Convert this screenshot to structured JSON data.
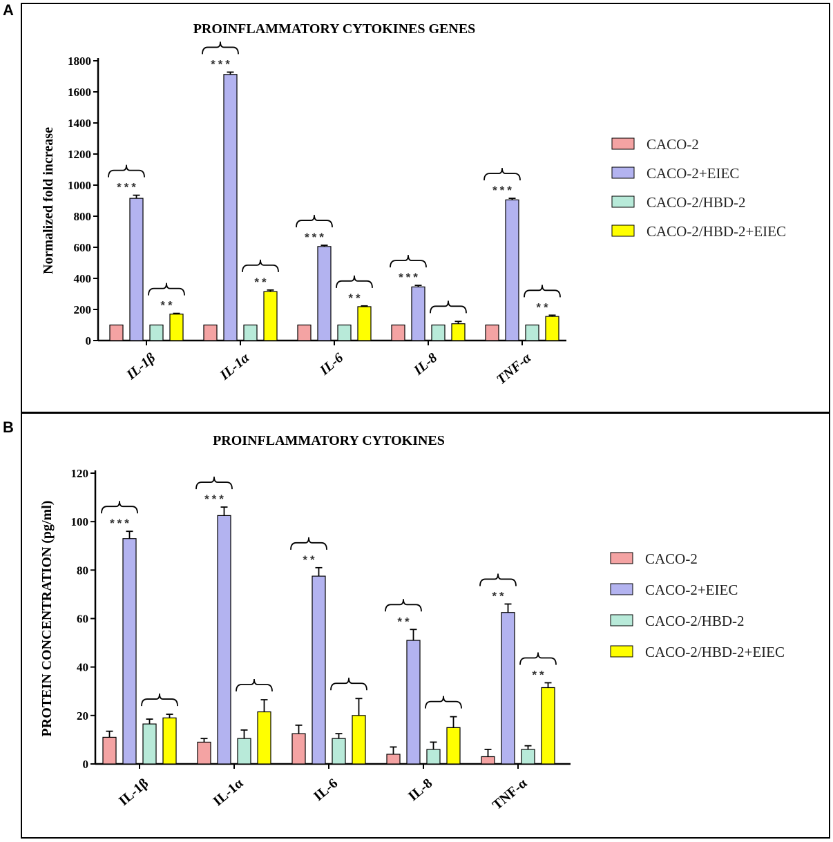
{
  "colors": {
    "CACO-2": "#f4a3a3",
    "CACO-2+EIEC": "#b3b3f0",
    "CACO-2/HBD-2": "#b8ead9",
    "CACO-2/HBD-2+EIEC": "#ffff00"
  },
  "panels": {
    "A": {
      "letter": "A"
    },
    "B": {
      "letter": "B"
    }
  },
  "chart_data": [
    {
      "panel": "A",
      "type": "bar",
      "title": "PROINFLAMMATORY CYTOKINES GENES",
      "xlabel": "",
      "ylabel": "Normalized fold increase",
      "ylim": [
        0,
        1800
      ],
      "yticks": [
        0,
        200,
        400,
        600,
        800,
        1000,
        1200,
        1400,
        1600,
        1800
      ],
      "categories": [
        "IL-1β",
        "IL-1α",
        "IL-6",
        "IL-8",
        "TNF-α"
      ],
      "category_italic": true,
      "series": [
        {
          "name": "CACO-2",
          "values": [
            100,
            100,
            100,
            100,
            100
          ],
          "errors": [
            0,
            0,
            0,
            0,
            0
          ]
        },
        {
          "name": "CACO-2+EIEC",
          "values": [
            915,
            1712,
            605,
            345,
            905
          ],
          "errors": [
            20,
            15,
            8,
            10,
            10
          ]
        },
        {
          "name": "CACO-2/HBD-2",
          "values": [
            100,
            100,
            100,
            100,
            100
          ],
          "errors": [
            0,
            0,
            0,
            0,
            0
          ]
        },
        {
          "name": "CACO-2/HBD-2+EIEC",
          "values": [
            170,
            315,
            218,
            108,
            155
          ],
          "errors": [
            5,
            10,
            5,
            15,
            8
          ]
        }
      ],
      "annotations": [
        {
          "category": 0,
          "series": 1,
          "stars": "***"
        },
        {
          "category": 0,
          "series": 3,
          "stars": "**"
        },
        {
          "category": 1,
          "series": 1,
          "stars": "***"
        },
        {
          "category": 1,
          "series": 3,
          "stars": "**"
        },
        {
          "category": 2,
          "series": 1,
          "stars": "***"
        },
        {
          "category": 2,
          "series": 3,
          "stars": "**"
        },
        {
          "category": 3,
          "series": 1,
          "stars": "***"
        },
        {
          "category": 3,
          "series": 3,
          "stars": ""
        },
        {
          "category": 4,
          "series": 1,
          "stars": "***"
        },
        {
          "category": 4,
          "series": 3,
          "stars": "**"
        }
      ],
      "legend": [
        "CACO-2",
        "CACO-2+EIEC",
        "CACO-2/HBD-2",
        "CACO-2/HBD-2+EIEC"
      ],
      "legend_position": "right"
    },
    {
      "panel": "B",
      "type": "bar",
      "title": "PROINFLAMMATORY CYTOKINES",
      "xlabel": "",
      "ylabel": "PROTEIN CONCENTRATION (pg/ml)",
      "ylim": [
        0,
        120
      ],
      "yticks": [
        0,
        20,
        40,
        60,
        80,
        100,
        120
      ],
      "categories": [
        "IL-1β",
        "IL-1α",
        "IL-6",
        "IL-8",
        "TNF-α"
      ],
      "category_italic": false,
      "series": [
        {
          "name": "CACO-2",
          "values": [
            11,
            9,
            12.5,
            4,
            3
          ],
          "errors": [
            2.5,
            1.5,
            3.5,
            3,
            3
          ]
        },
        {
          "name": "CACO-2+EIEC",
          "values": [
            93,
            102.5,
            77.5,
            51,
            62.5
          ],
          "errors": [
            3,
            3.5,
            3.5,
            4.5,
            3.5
          ]
        },
        {
          "name": "CACO-2/HBD-2",
          "values": [
            16.5,
            10.5,
            10.5,
            6,
            6
          ],
          "errors": [
            2,
            3.5,
            2,
            3,
            1.5
          ]
        },
        {
          "name": "CACO-2/HBD-2+EIEC",
          "values": [
            19,
            21.5,
            20,
            15,
            31.5
          ],
          "errors": [
            1.5,
            5,
            7,
            4.5,
            2
          ]
        }
      ],
      "annotations": [
        {
          "category": 0,
          "series": 1,
          "stars": "***"
        },
        {
          "category": 0,
          "series": 3,
          "stars": ""
        },
        {
          "category": 1,
          "series": 1,
          "stars": "***"
        },
        {
          "category": 1,
          "series": 3,
          "stars": ""
        },
        {
          "category": 2,
          "series": 1,
          "stars": "**"
        },
        {
          "category": 2,
          "series": 3,
          "stars": ""
        },
        {
          "category": 3,
          "series": 1,
          "stars": "**"
        },
        {
          "category": 3,
          "series": 3,
          "stars": ""
        },
        {
          "category": 4,
          "series": 1,
          "stars": "**"
        },
        {
          "category": 4,
          "series": 3,
          "stars": "**"
        }
      ],
      "legend": [
        "CACO-2",
        "CACO-2+EIEC",
        "CACO-2/HBD-2",
        "CACO-2/HBD-2+EIEC"
      ],
      "legend_position": "right"
    }
  ]
}
